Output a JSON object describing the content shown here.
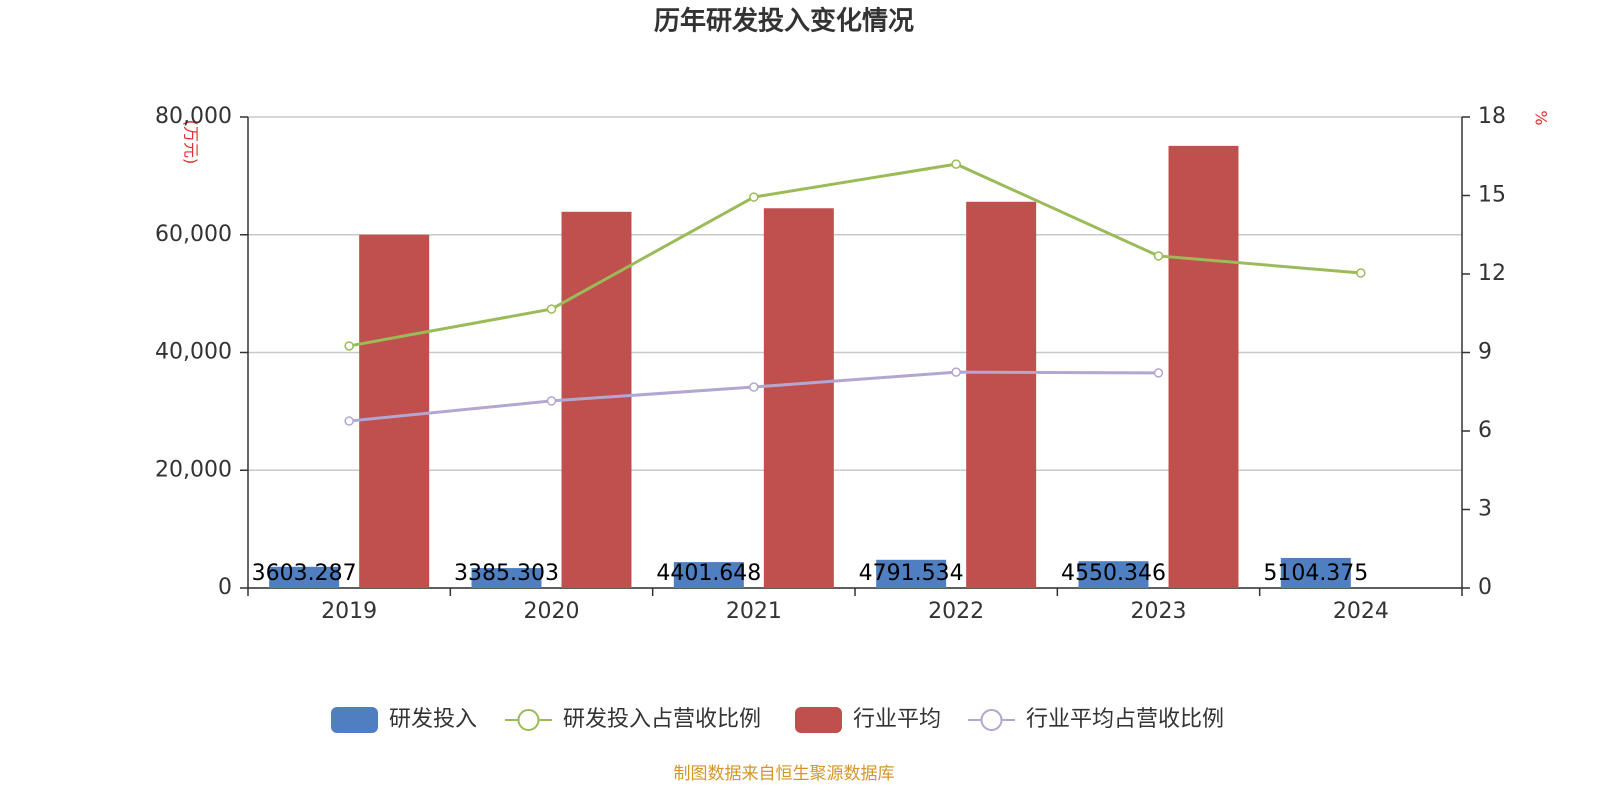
{
  "chart_data": {
    "type": "bar",
    "title": "历年研发投入变化情况",
    "y_label": "(万元)",
    "y2_label": "%",
    "source": "制图数据来自恒生聚源数据库",
    "categories": [
      "2019",
      "2020",
      "2021",
      "2022",
      "2023",
      "2024"
    ],
    "series": [
      {
        "name": "研发投入",
        "type": "bar",
        "axis": "y",
        "color": "#4f7fc0",
        "values": [
          3603.287,
          3385.303,
          4401.648,
          4791.534,
          4550.346,
          5104.375
        ]
      },
      {
        "name": "研发投入占营收比例",
        "type": "line",
        "axis": "y2",
        "color": "#9bbb59",
        "values": [
          9.25,
          10.66,
          14.94,
          16.2,
          12.69,
          12.04
        ]
      },
      {
        "name": "行业平均",
        "type": "bar",
        "axis": "y",
        "color": "#c0504d",
        "values": [
          60000,
          63900,
          64500,
          65600,
          75100,
          null
        ]
      },
      {
        "name": "行业平均占营收比例",
        "type": "line",
        "axis": "y2",
        "color": "#b3a6cf",
        "values": [
          6.38,
          7.15,
          7.68,
          8.25,
          8.22,
          null
        ]
      }
    ],
    "ylim": [
      0,
      80000
    ],
    "yticks": [
      0,
      {
        "value": 20000,
        "label": "20,000"
      },
      {
        "value": 40000,
        "label": "40,000"
      },
      {
        "value": 60000,
        "label": "60,000"
      },
      {
        "value": 80000,
        "label": "80,000"
      }
    ],
    "y2lim": [
      0,
      18
    ],
    "y2ticks": [
      0,
      3,
      6,
      9,
      12,
      15,
      18
    ],
    "grid": true,
    "legend": "bottom"
  }
}
